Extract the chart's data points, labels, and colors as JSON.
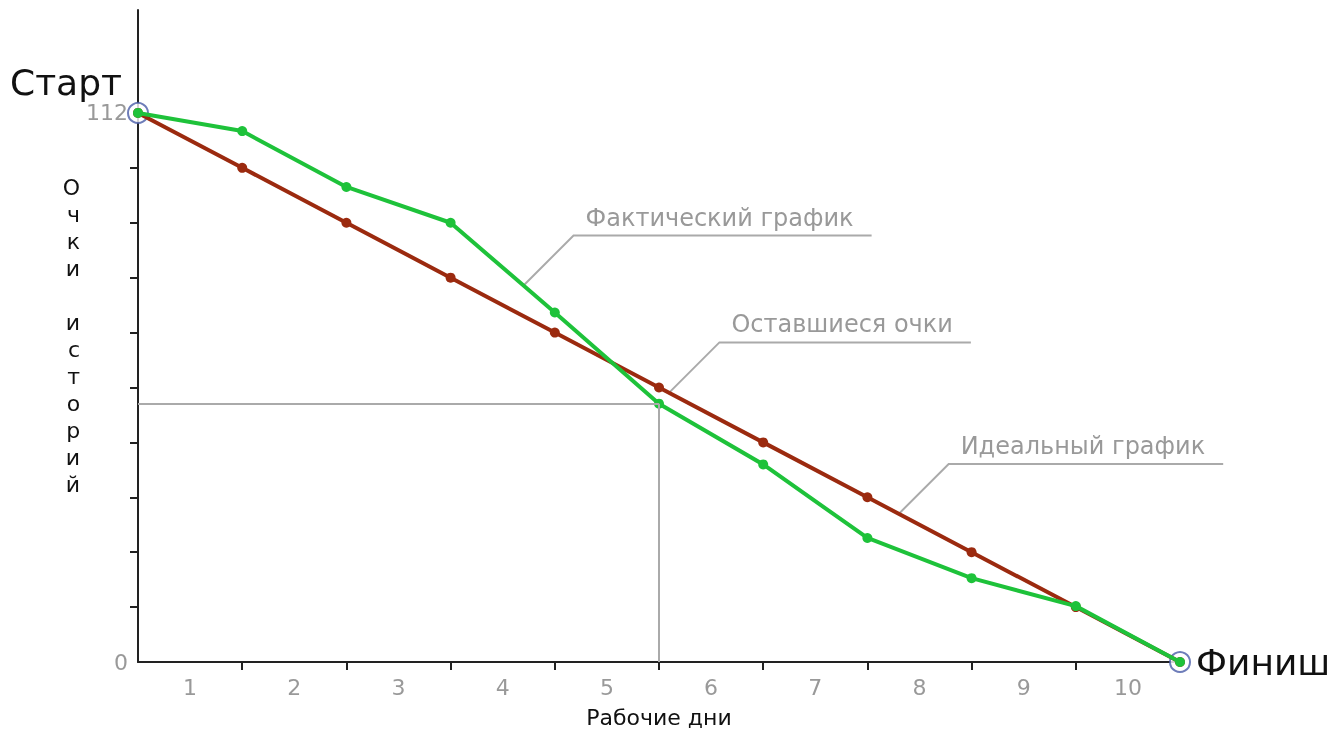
{
  "chart_data": {
    "type": "line",
    "xlabel": "Рабочие дни",
    "ylabel": "Очки историй",
    "xlim": [
      0,
      10
    ],
    "ylim": [
      0,
      133
    ],
    "xticks": [
      {
        "value": 0.5,
        "label": "1"
      },
      {
        "value": 1,
        "label": null
      },
      {
        "value": 1.5,
        "label": "2"
      },
      {
        "value": 2,
        "label": null
      },
      {
        "value": 2.5,
        "label": "3"
      },
      {
        "value": 3,
        "label": null
      },
      {
        "value": 3.5,
        "label": "4"
      },
      {
        "value": 4,
        "label": null
      },
      {
        "value": 4.5,
        "label": "5"
      },
      {
        "value": 5,
        "label": null
      },
      {
        "value": 5.5,
        "label": "6"
      },
      {
        "value": 6,
        "label": null
      },
      {
        "value": 6.5,
        "label": "7"
      },
      {
        "value": 7,
        "label": null
      },
      {
        "value": 7.5,
        "label": "8"
      },
      {
        "value": 8,
        "label": null
      },
      {
        "value": 8.5,
        "label": "9"
      },
      {
        "value": 9,
        "label": null
      },
      {
        "value": 9.5,
        "label": "10"
      }
    ],
    "yticks": [
      0,
      {
        "value": 11.2,
        "label": null
      },
      {
        "value": 22.4,
        "label": null
      },
      {
        "value": 33.6,
        "label": null
      },
      {
        "value": 44.8,
        "label": null
      },
      {
        "value": 56,
        "label": null
      },
      {
        "value": 67.2,
        "label": null
      },
      {
        "value": 78.4,
        "label": null
      },
      {
        "value": 89.6,
        "label": null
      },
      {
        "value": 100.8,
        "label": null
      },
      112
    ],
    "grid": false,
    "marker": "circle",
    "series": [
      {
        "color": "#9b2a0f",
        "x": [
          0,
          1,
          2,
          3,
          4,
          5,
          6,
          7,
          8,
          9,
          10
        ],
        "values": [
          112,
          100.8,
          89.6,
          78.4,
          67.2,
          56,
          44.8,
          33.6,
          22.4,
          11.2,
          0
        ]
      },
      {
        "color": "#1ec23a",
        "x": [
          0,
          1,
          2,
          3,
          4,
          5,
          6,
          7,
          8,
          9,
          10
        ],
        "values": [
          112,
          108.3,
          96.9,
          89.6,
          71.3,
          52.7,
          40.3,
          25.3,
          17.1,
          11.4,
          0
        ]
      },
      {
        "type": "scatter",
        "color": "#4a5ca8",
        "x": [
          0,
          10
        ],
        "values": [
          112,
          0
        ]
      }
    ],
    "ref_lines": [
      {
        "axis": "x",
        "value": 5,
        "label": null,
        "color": "#aaaaaa"
      },
      {
        "axis": "y",
        "value": 52.7,
        "label": null,
        "color": "#aaaaaa"
      }
    ],
    "annotations": [
      {
        "text": "Старт",
        "x": 0,
        "y": 112
      },
      {
        "text": "Финиш",
        "x": 10,
        "y": 0
      },
      {
        "text": "Фактический график",
        "x": 3.7,
        "y": 76.8
      },
      {
        "text": "Оставшиеся очки",
        "x": 5.1,
        "y": 55
      },
      {
        "text": "Идеальный график",
        "x": 7.3,
        "y": 30.2
      }
    ]
  }
}
